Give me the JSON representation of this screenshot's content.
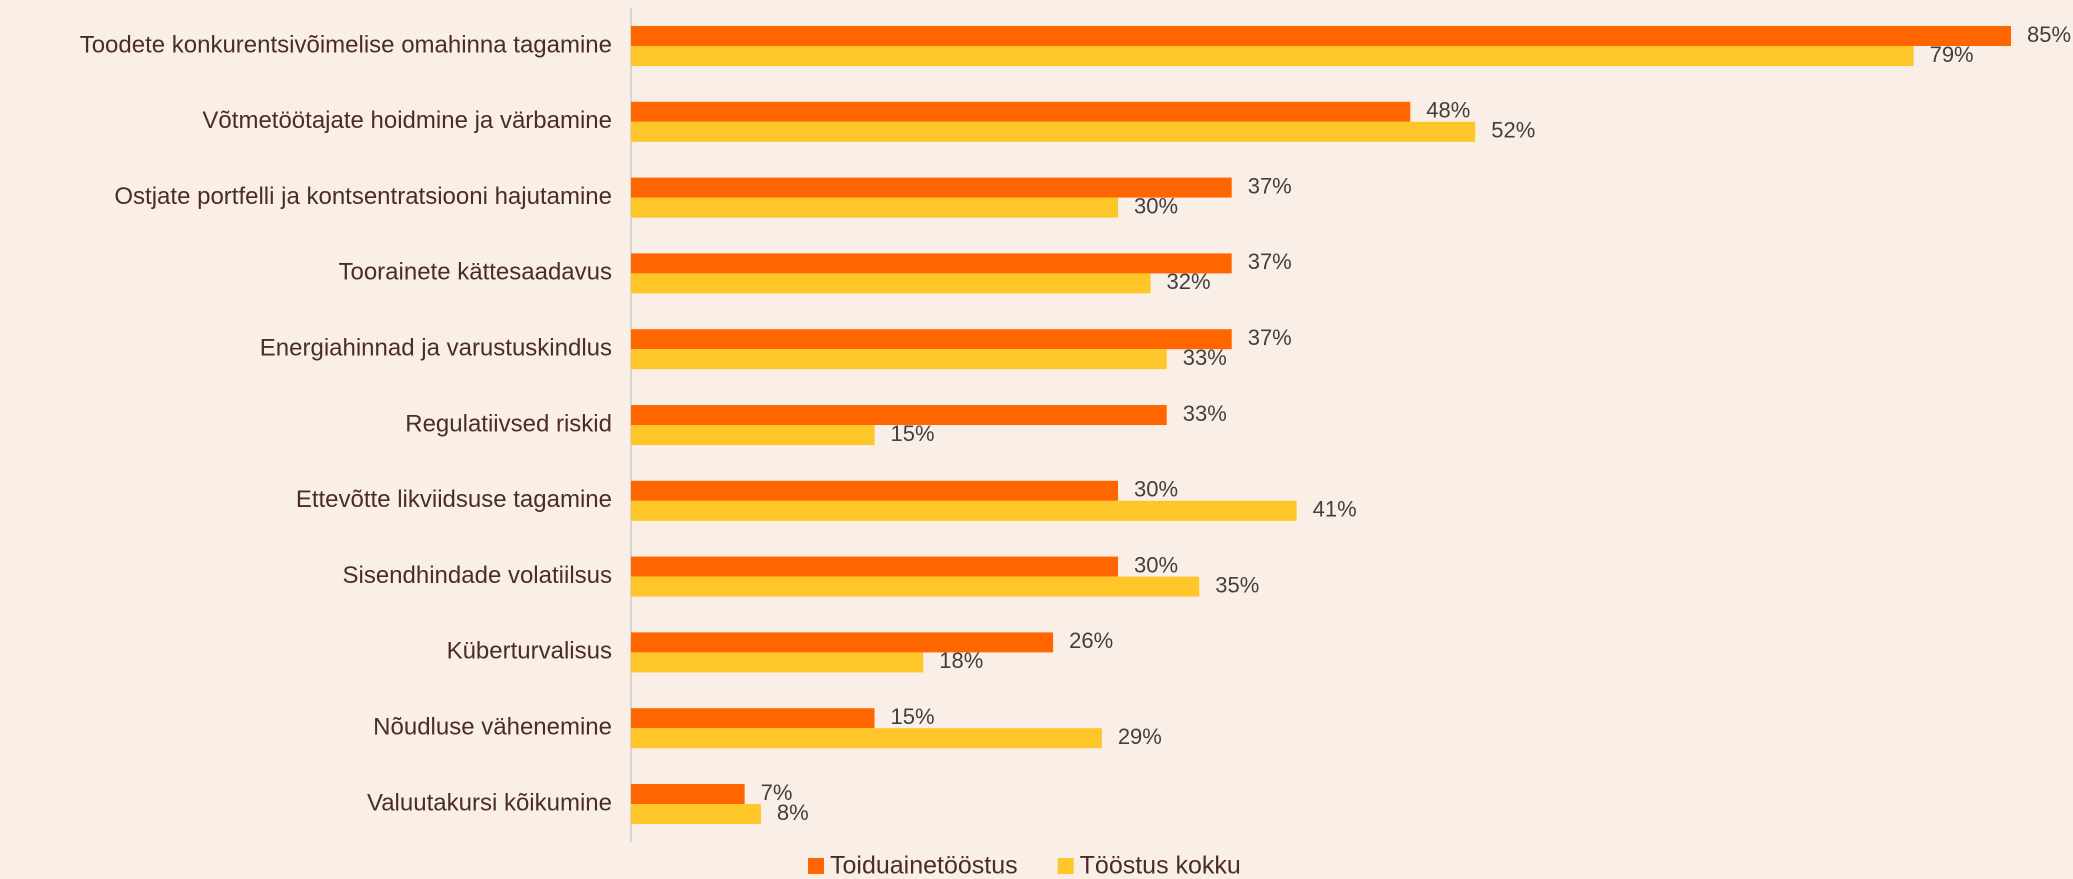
{
  "chart_data": {
    "type": "bar",
    "orientation": "horizontal",
    "categories": [
      "Toodete konkurentsivõimelise omahinna tagamine",
      "Võtmetöötajate hoidmine ja värbamine",
      "Ostjate portfelli ja kontsentratsiooni hajutamine",
      "Toorainete kättesaadavus",
      "Energiahinnad ja varustuskindlus",
      "Regulatiivsed riskid",
      "Ettevõtte likviidsuse tagamine",
      "Sisendhindade volatiilsus",
      "Küberturvalisus",
      "Nõudluse vähenemine",
      "Valuutakursi kõikumine"
    ],
    "series": [
      {
        "name": "Toiduainetööstus",
        "color": "#ff6600",
        "values": [
          85,
          48,
          37,
          37,
          37,
          33,
          30,
          30,
          26,
          15,
          7
        ],
        "value_labels": [
          "85%",
          "48%",
          "37%",
          "37%",
          "37%",
          "33%",
          "30%",
          "30%",
          "26%",
          "15%",
          "7%"
        ]
      },
      {
        "name": "Tööstus kokku",
        "color": "#ffc629",
        "values": [
          79,
          52,
          30,
          32,
          33,
          15,
          41,
          35,
          18,
          29,
          8
        ],
        "value_labels": [
          "79%",
          "52%",
          "30%",
          "32%",
          "33%",
          "15%",
          "41%",
          "35%",
          "18%",
          "29%",
          "8%"
        ]
      }
    ],
    "xlim": [
      0,
      85
    ],
    "legend": "bottom"
  }
}
